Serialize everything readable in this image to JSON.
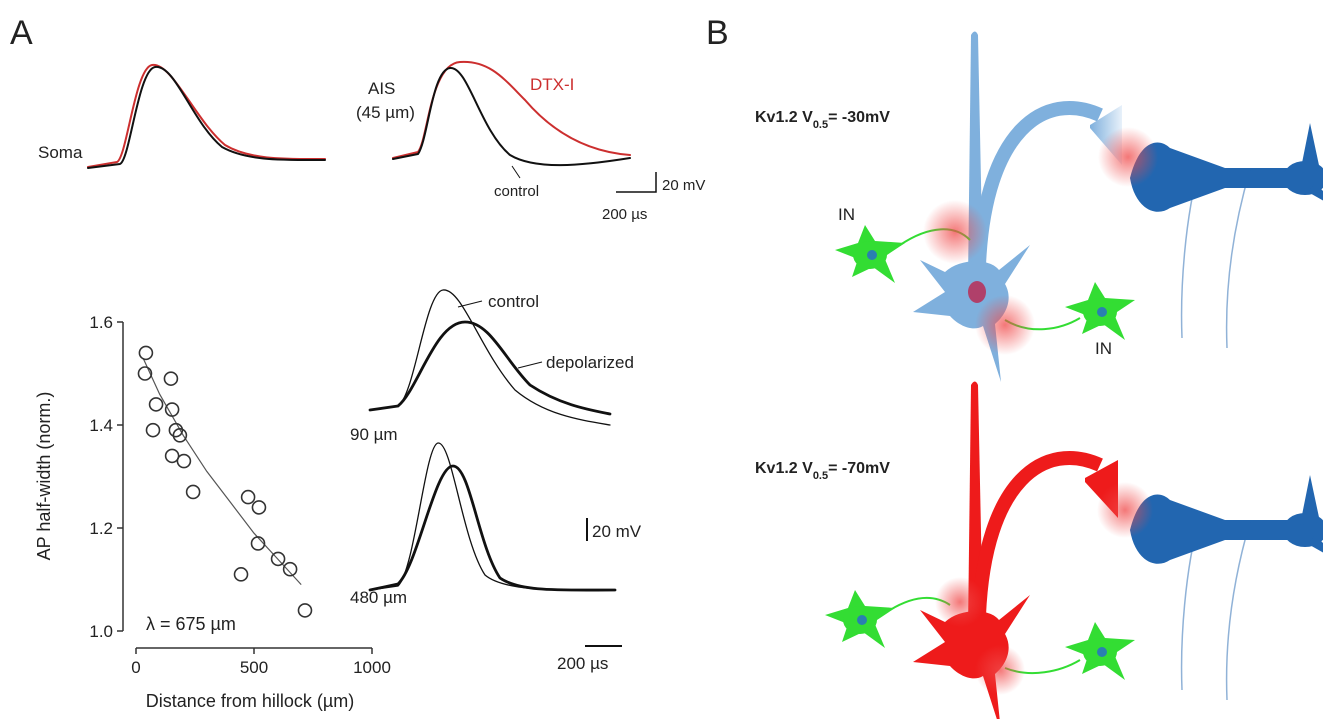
{
  "panel_labels": [
    "A",
    "B"
  ],
  "traces_top": {
    "soma_label": "Soma",
    "ais_label": "AIS",
    "ais_distance": "(45 µm)",
    "dtx_label": "DTX-I",
    "control_label": "control",
    "scale_v": "20 mV",
    "scale_t": "200 µs"
  },
  "traces_right": {
    "control_label": "control",
    "depolarized_label": "depolarized",
    "distance_1": "90 µm",
    "distance_2": "480 µm",
    "scale_v": "20 mV",
    "scale_t": "200 µs"
  },
  "chart_data": {
    "type": "scatter",
    "xlabel": "Distance from hillock (µm)",
    "ylabel": "AP half-width (norm.)",
    "annotation": "λ = 675 µm",
    "x": [
      42,
      38,
      85,
      72,
      148,
      153,
      169,
      186,
      153,
      203,
      242,
      475,
      521,
      517,
      602,
      653,
      445,
      716
    ],
    "values": [
      1.54,
      1.5,
      1.44,
      1.39,
      1.49,
      1.43,
      1.39,
      1.38,
      1.34,
      1.33,
      1.27,
      1.26,
      1.24,
      1.17,
      1.14,
      1.12,
      1.11,
      1.04
    ],
    "color": "#333333",
    "fit": {
      "x": [
        30,
        100,
        200,
        300,
        400,
        500,
        600,
        700
      ],
      "values": [
        1.53,
        1.46,
        1.38,
        1.31,
        1.25,
        1.19,
        1.14,
        1.09
      ],
      "color": "#555555"
    },
    "xlim": [
      0,
      1000
    ],
    "ylim": [
      1.0,
      1.6
    ],
    "xticks": [
      0,
      500,
      1000
    ],
    "yticks": [
      {
        "value": 1.0,
        "label": "1.0"
      },
      1.2,
      1.4,
      1.6
    ]
  },
  "diagram": {
    "top": {
      "prefix": "Kv1.2 V",
      "subscript": "0.5",
      "suffix": "= -30mV"
    },
    "bottom": {
      "prefix": "Kv1.2 V",
      "subscript": "0.5",
      "suffix": "= -70mV"
    },
    "in_labels": [
      "IN",
      "IN"
    ]
  }
}
